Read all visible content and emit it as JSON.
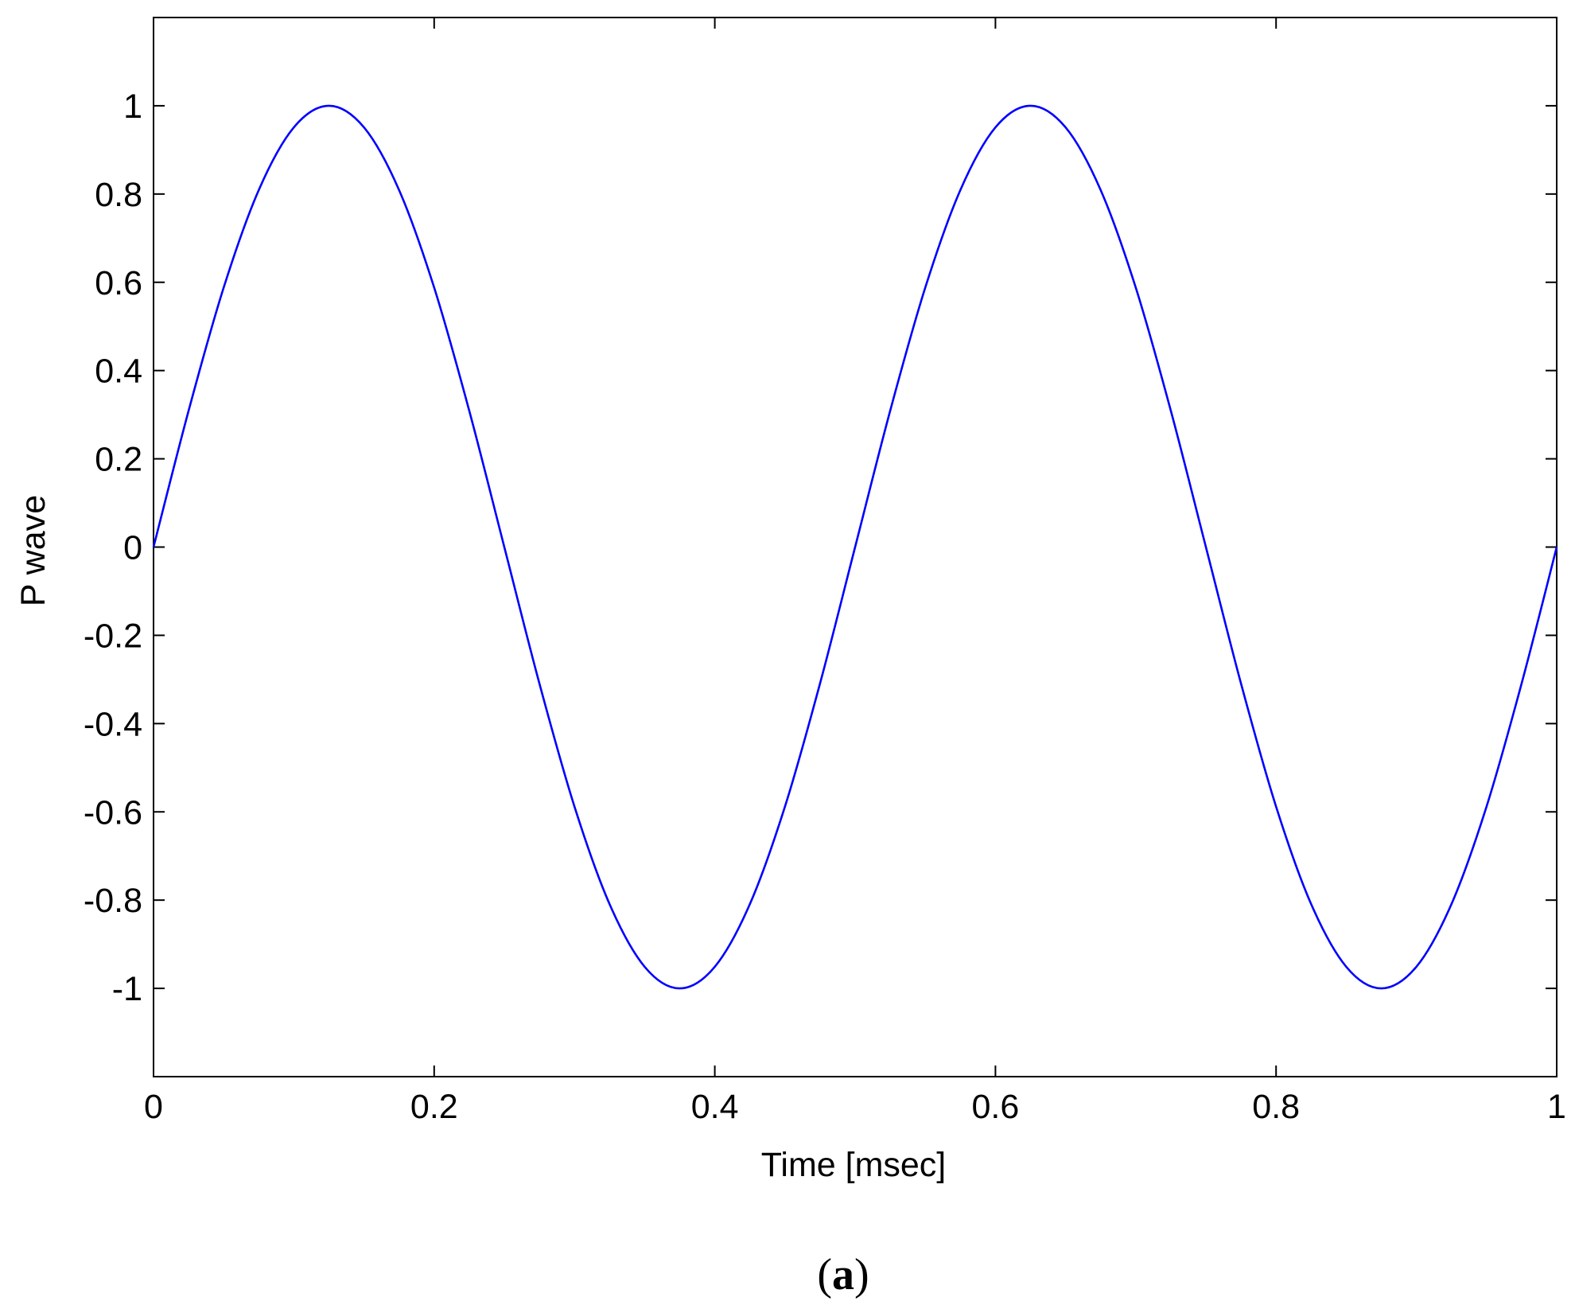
{
  "chart_data": {
    "type": "line",
    "title": "",
    "xlabel": "Time [msec]",
    "ylabel": "P wave",
    "xlim": [
      0,
      1
    ],
    "ylim": [
      -1.2,
      1.2
    ],
    "xticks": [
      0,
      0.2,
      0.4,
      0.6,
      0.8,
      1
    ],
    "xtick_labels": [
      "0",
      "0.2",
      "0.4",
      "0.6",
      "0.8",
      "1"
    ],
    "yticks": [
      1,
      0.8,
      0.6,
      0.4,
      0.2,
      0,
      -0.2,
      -0.4,
      -0.6,
      -0.8,
      -1
    ],
    "ytick_labels": [
      "1",
      "0.8",
      "0.6",
      "0.4",
      "0.2",
      "0",
      "-0.2",
      "-0.4",
      "-0.6",
      "-0.8",
      "-1"
    ],
    "grid": false,
    "series": [
      {
        "color": "#0000ff",
        "x": [
          0,
          0.025,
          0.05,
          0.075,
          0.1,
          0.125,
          0.15,
          0.175,
          0.2,
          0.225,
          0.25,
          0.275,
          0.3,
          0.325,
          0.35,
          0.375,
          0.4,
          0.425,
          0.45,
          0.475,
          0.5,
          0.525,
          0.55,
          0.575,
          0.6,
          0.625,
          0.65,
          0.675,
          0.7,
          0.725,
          0.75,
          0.775,
          0.8,
          0.825,
          0.85,
          0.875,
          0.9,
          0.925,
          0.95,
          0.975,
          1
        ],
        "y": [
          0,
          0.309,
          0.588,
          0.809,
          0.951,
          1,
          0.951,
          0.809,
          0.588,
          0.309,
          0,
          -0.309,
          -0.588,
          -0.809,
          -0.951,
          -1,
          -0.951,
          -0.809,
          -0.588,
          -0.309,
          0,
          0.309,
          0.588,
          0.809,
          0.951,
          1,
          0.951,
          0.809,
          0.588,
          0.309,
          0,
          -0.309,
          -0.588,
          -0.809,
          -0.951,
          -1,
          -0.951,
          -0.809,
          -0.588,
          -0.309,
          0
        ]
      }
    ]
  },
  "caption": {
    "open": "(",
    "letter": "a",
    "close": ")"
  }
}
